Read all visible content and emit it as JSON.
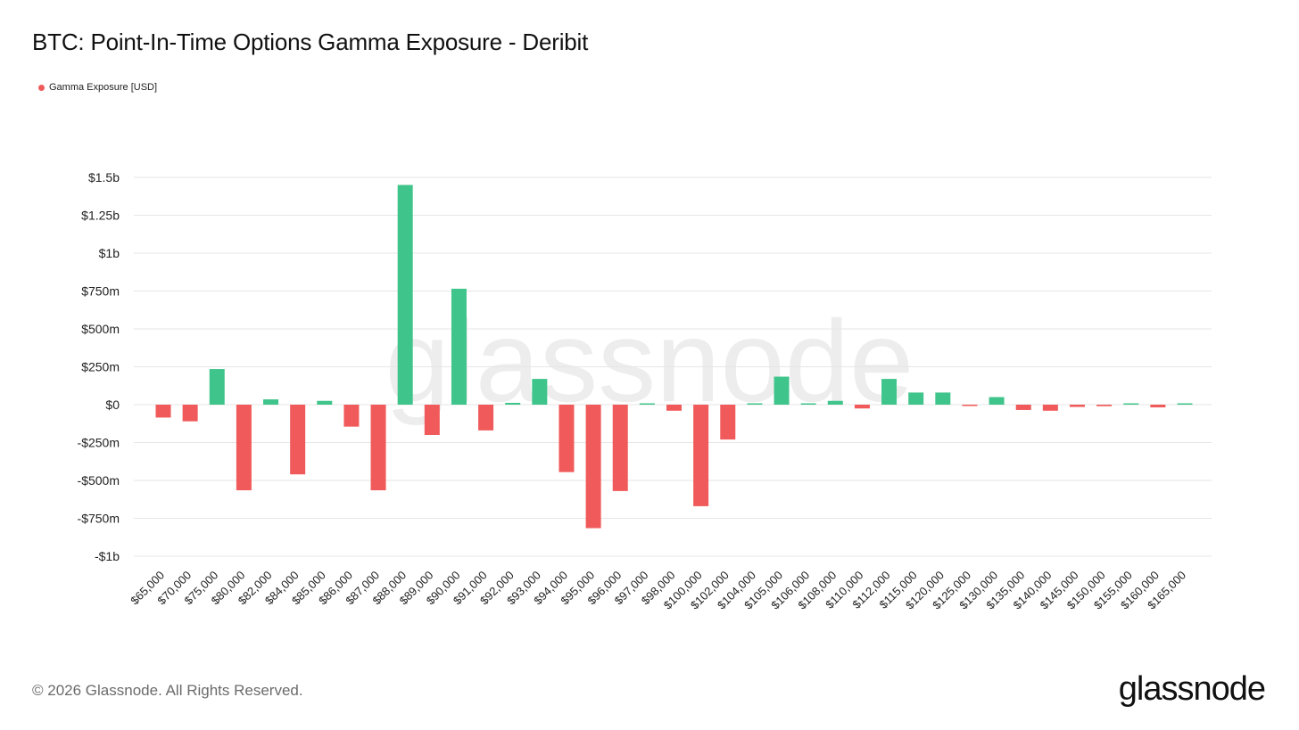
{
  "header": {
    "title": "BTC: Point-In-Time Options Gamma Exposure - Deribit"
  },
  "legend": {
    "label": "Gamma Exposure [USD]",
    "color": "#f05a5a"
  },
  "watermark": "glassnode",
  "footer": {
    "copyright": "© 2026 Glassnode. All Rights Reserved.",
    "logo": "glassnode"
  },
  "colors": {
    "positive": "#3fc48b",
    "negative": "#f05a5a",
    "grid": "#e6e6e6",
    "axis_text": "#222222"
  },
  "chart_data": {
    "type": "bar",
    "title": "BTC: Point-In-Time Options Gamma Exposure - Deribit",
    "xlabel": "",
    "ylabel": "",
    "legend_position": "top-left",
    "grid": true,
    "ylim": [
      -1000000000,
      1500000000
    ],
    "y_ticks": [
      {
        "value": 1500000000,
        "label": "$1.5b"
      },
      {
        "value": 1250000000,
        "label": "$1.25b"
      },
      {
        "value": 1000000000,
        "label": "$1b"
      },
      {
        "value": 750000000,
        "label": "$750m"
      },
      {
        "value": 500000000,
        "label": "$500m"
      },
      {
        "value": 250000000,
        "label": "$250m"
      },
      {
        "value": 0,
        "label": "$0"
      },
      {
        "value": -250000000,
        "label": "-$250m"
      },
      {
        "value": -500000000,
        "label": "-$500m"
      },
      {
        "value": -750000000,
        "label": "-$750m"
      },
      {
        "value": -1000000000,
        "label": "-$1b"
      }
    ],
    "categories": [
      "$65,000",
      "$70,000",
      "$75,000",
      "$80,000",
      "$82,000",
      "$84,000",
      "$85,000",
      "$86,000",
      "$87,000",
      "$88,000",
      "$89,000",
      "$90,000",
      "$91,000",
      "$92,000",
      "$93,000",
      "$94,000",
      "$95,000",
      "$96,000",
      "$97,000",
      "$98,000",
      "$100,000",
      "$102,000",
      "$104,000",
      "$105,000",
      "$106,000",
      "$108,000",
      "$110,000",
      "$112,000",
      "$115,000",
      "$120,000",
      "$125,000",
      "$130,000",
      "$135,000",
      "$140,000",
      "$145,000",
      "$150,000",
      "$155,000",
      "$160,000",
      "$165,000"
    ],
    "series": [
      {
        "name": "Gamma Exposure [USD]",
        "values": [
          -85000000,
          -110000000,
          235000000,
          -565000000,
          35000000,
          -460000000,
          25000000,
          -145000000,
          -565000000,
          1450000000,
          -200000000,
          765000000,
          -170000000,
          12000000,
          170000000,
          -445000000,
          -815000000,
          -570000000,
          5000000,
          -40000000,
          -670000000,
          -230000000,
          5000000,
          185000000,
          5000000,
          25000000,
          -25000000,
          170000000,
          80000000,
          80000000,
          -5000000,
          50000000,
          -35000000,
          -40000000,
          -15000000,
          -10000000,
          5000000,
          -18000000,
          3000000
        ]
      }
    ]
  }
}
